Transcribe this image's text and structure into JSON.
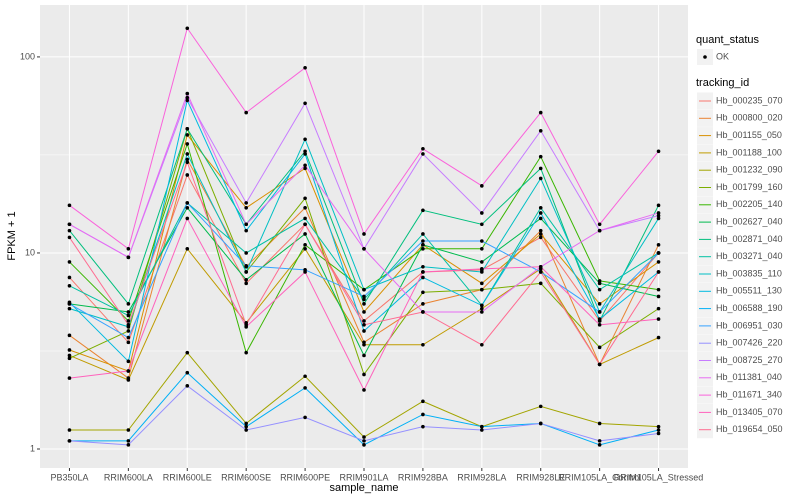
{
  "chart_data": {
    "type": "line",
    "x_label": "sample_name",
    "y_label": "FPKM + 1",
    "log_y": true,
    "grid": true,
    "legend_position": "right",
    "point_color": "#000000",
    "shape_legend": {
      "title": "quant_status",
      "labels": [
        "OK"
      ]
    },
    "color_legend_title": "tracking_id",
    "categories": [
      "PB350LA",
      "RRIM600LA",
      "RRIM600LE",
      "RRIM600SE",
      "RRIM600PE",
      "RRIM901LA",
      "RRIM928BA",
      "RRIM928LA",
      "RRIM928LE",
      "RRIM105LA_Control",
      "RRIM105LA_Stressed"
    ],
    "ylim": [
      0.8,
      184
    ],
    "yticks": [
      1,
      10,
      100
    ],
    "series": [
      {
        "name": "Hb_000235_070",
        "color": "#F8766D",
        "values": [
          7.5,
          3.5,
          25,
          7.0,
          14,
          4.5,
          8,
          8.2,
          12,
          4.5,
          10
        ]
      },
      {
        "name": "Hb_000800_020",
        "color": "#EA8331",
        "values": [
          3.8,
          2.3,
          30,
          8.5,
          17,
          3.5,
          5.5,
          6.5,
          13,
          2.7,
          11
        ]
      },
      {
        "name": "Hb_001155_050",
        "color": "#D89000",
        "values": [
          3.2,
          2.5,
          40,
          17,
          27,
          5,
          11,
          7,
          12.5,
          5.5,
          9
        ]
      },
      {
        "name": "Hb_001188_100",
        "color": "#C09B00",
        "values": [
          3.0,
          2.25,
          10.5,
          4.4,
          10.5,
          3.4,
          3.4,
          5.2,
          8.3,
          2.7,
          3.7
        ]
      },
      {
        "name": "Hb_001232_090",
        "color": "#A3A500",
        "values": [
          1.25,
          1.25,
          3.1,
          1.35,
          2.35,
          1.15,
          1.75,
          1.3,
          1.65,
          1.35,
          1.3
        ]
      },
      {
        "name": "Hb_001799_160",
        "color": "#7CAE00",
        "values": [
          2.9,
          4.0,
          43,
          8,
          19,
          2.4,
          6.3,
          6.5,
          7.0,
          3.3,
          5.2
        ]
      },
      {
        "name": "Hb_002205_140",
        "color": "#39B600",
        "values": [
          9,
          4.5,
          36,
          3.1,
          11,
          6.5,
          10.5,
          10.5,
          31,
          7.2,
          6.5
        ]
      },
      {
        "name": "Hb_002627_040",
        "color": "#00BB4E",
        "values": [
          5.5,
          5,
          17,
          7.3,
          12.5,
          3,
          11,
          9,
          15,
          7,
          6
        ]
      },
      {
        "name": "Hb_002871_040",
        "color": "#00BF7D",
        "values": [
          13,
          5.5,
          43,
          14,
          33,
          5.5,
          16.5,
          14,
          27,
          4.5,
          17.5
        ]
      },
      {
        "name": "Hb_003271_040",
        "color": "#00C1A3",
        "values": [
          6.8,
          4.8,
          18,
          10,
          15,
          5.8,
          12.5,
          5.4,
          17,
          6.5,
          10
        ]
      },
      {
        "name": "Hb_003835_110",
        "color": "#00BFC4",
        "values": [
          5.2,
          4.2,
          32,
          8,
          38,
          6.5,
          8.5,
          8,
          24,
          5,
          15
        ]
      },
      {
        "name": "Hb_005511_130",
        "color": "#00BAE0",
        "values": [
          5.6,
          2.8,
          60,
          13,
          32,
          4,
          7.5,
          5.4,
          16,
          4.6,
          8
        ]
      },
      {
        "name": "Hb_006588_190",
        "color": "#00B0F6",
        "values": [
          1.1,
          1.1,
          2.45,
          1.3,
          2.05,
          1.05,
          1.5,
          1.3,
          1.35,
          1.05,
          1.25
        ]
      },
      {
        "name": "Hb_006951_030",
        "color": "#35A2FF",
        "values": [
          5.5,
          3.7,
          18,
          8.6,
          8.2,
          6,
          11.5,
          11.5,
          8,
          5,
          10
        ]
      },
      {
        "name": "Hb_007426_220",
        "color": "#9590FF",
        "values": [
          1.1,
          1.05,
          2.1,
          1.25,
          1.45,
          1.1,
          1.3,
          1.25,
          1.35,
          1.1,
          1.2
        ]
      },
      {
        "name": "Hb_008725_270",
        "color": "#C77CFF",
        "values": [
          14,
          9.5,
          62,
          18,
          58,
          10.5,
          32,
          16,
          42,
          13,
          15.5
        ]
      },
      {
        "name": "Hb_011381_040",
        "color": "#E76BF3",
        "values": [
          14,
          9.5,
          65,
          14,
          28,
          10.5,
          5,
          5,
          8.5,
          13,
          16
        ]
      },
      {
        "name": "Hb_011671_340",
        "color": "#FA62DB",
        "values": [
          17.5,
          10.5,
          140,
          52,
          88,
          12.5,
          34,
          22,
          52,
          14,
          33
        ]
      },
      {
        "name": "Hb_013405_070",
        "color": "#FF62BC",
        "values": [
          2.3,
          2.5,
          15,
          4.2,
          8,
          2,
          8,
          8.3,
          8.5,
          4.3,
          4.6
        ]
      },
      {
        "name": "Hb_019654_050",
        "color": "#FF6C91",
        "values": [
          12,
          4.3,
          29,
          4.3,
          14,
          4.3,
          5,
          3.4,
          8,
          2.7,
          8
        ]
      }
    ]
  }
}
